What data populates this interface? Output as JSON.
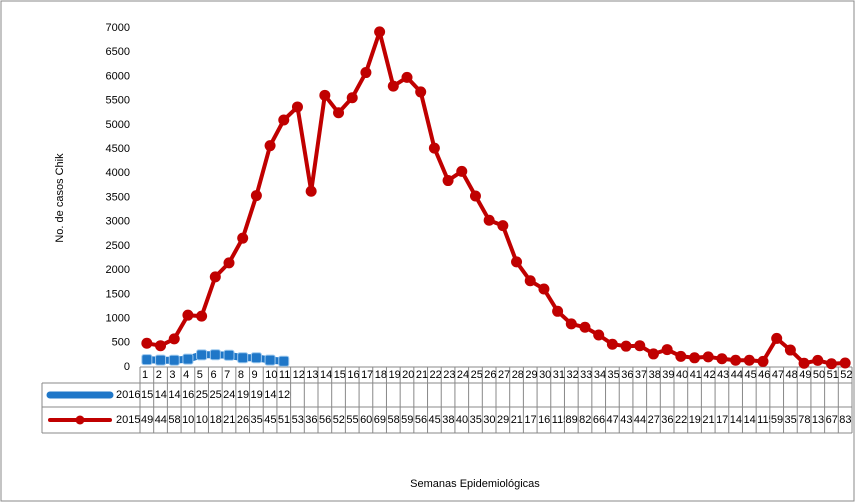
{
  "chart_data": {
    "type": "line",
    "y_label": "No. de casos Chik",
    "x_label": "Semanas Epidemiológicas",
    "categories": [
      "1",
      "2",
      "3",
      "4",
      "5",
      "6",
      "7",
      "8",
      "9",
      "10",
      "11",
      "12",
      "13",
      "14",
      "15",
      "16",
      "17",
      "18",
      "19",
      "20",
      "21",
      "22",
      "23",
      "24",
      "25",
      "26",
      "27",
      "28",
      "29",
      "30",
      "31",
      "32",
      "33",
      "34",
      "35",
      "36",
      "37",
      "38",
      "39",
      "40",
      "41",
      "42",
      "43",
      "44",
      "45",
      "46",
      "47",
      "48",
      "49",
      "50",
      "51",
      "52"
    ],
    "series": [
      {
        "name": "2016",
        "color": "#1f77c8",
        "values": [
          152,
          141,
          140,
          163,
          251,
          253,
          242,
          190,
          191,
          143,
          120,
          null,
          null,
          null,
          null,
          null,
          null,
          null,
          null,
          null,
          null,
          null,
          null,
          null,
          null,
          null,
          null,
          null,
          null,
          null,
          null,
          null,
          null,
          null,
          null,
          null,
          null,
          null,
          null,
          null,
          null,
          null,
          null,
          null,
          null,
          null,
          null,
          null,
          null,
          null,
          null,
          null
        ]
      },
      {
        "name": "2015",
        "color": "#c00000",
        "values": [
          490,
          440,
          580,
          1070,
          1050,
          1860,
          2150,
          2660,
          3540,
          4570,
          5100,
          5370,
          3630,
          5610,
          5250,
          5560,
          6080,
          6920,
          5800,
          5980,
          5680,
          4520,
          3850,
          4040,
          3530,
          3030,
          2920,
          2170,
          1780,
          1610,
          1150,
          890,
          820,
          660,
          470,
          430,
          440,
          270,
          360,
          220,
          190,
          210,
          170,
          140,
          140,
          115,
          590,
          350,
          78,
          136,
          67,
          83
        ]
      }
    ],
    "ylim": [
      0,
      7000
    ],
    "yticks": [
      0,
      500,
      1000,
      1500,
      2000,
      2500,
      3000,
      3500,
      4000,
      4500,
      5000,
      5500,
      6000,
      6500,
      7000
    ],
    "grid": false
  }
}
